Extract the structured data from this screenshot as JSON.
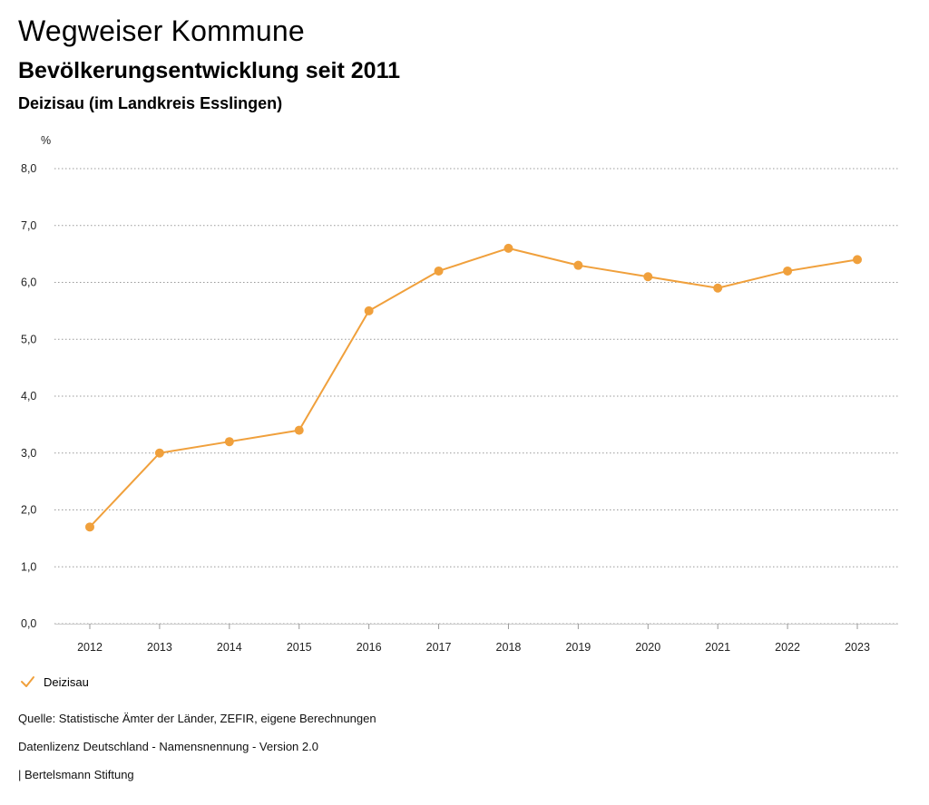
{
  "header": {
    "title": "Wegweiser Kommune",
    "subtitle": "Bevölkerungsentwicklung seit 2011",
    "region": "Deizisau (im Landkreis Esslingen)"
  },
  "colors": {
    "series": "#f0a03c",
    "grid": "#999999"
  },
  "chart_data": {
    "type": "line",
    "title": "Bevölkerungsentwicklung seit 2011",
    "ylabel": "%",
    "xlabel": "",
    "ylim": [
      0,
      8
    ],
    "yticks": [
      "0,0",
      "1,0",
      "2,0",
      "3,0",
      "4,0",
      "5,0",
      "6,0",
      "7,0",
      "8,0"
    ],
    "categories": [
      "2012",
      "2013",
      "2014",
      "2015",
      "2016",
      "2017",
      "2018",
      "2019",
      "2020",
      "2021",
      "2022",
      "2023"
    ],
    "series": [
      {
        "name": "Deizisau",
        "values": [
          1.7,
          3.0,
          3.2,
          3.4,
          5.5,
          6.2,
          6.6,
          6.3,
          6.1,
          5.9,
          6.2,
          6.4
        ]
      }
    ],
    "grid": true,
    "legend": "bottom-left"
  },
  "legend": {
    "label": "Deizisau"
  },
  "footer": {
    "source": "Quelle: Statistische Ämter der Länder, ZEFIR, eigene Berechnungen",
    "license": "Datenlizenz Deutschland - Namensnennung - Version 2.0",
    "brand": "| Bertelsmann Stiftung"
  }
}
